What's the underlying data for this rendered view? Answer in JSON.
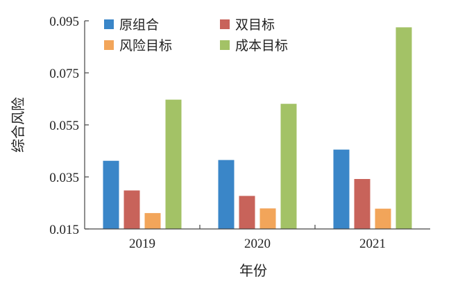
{
  "chart_data": {
    "type": "bar",
    "categories": [
      "2019",
      "2020",
      "2021"
    ],
    "series": [
      {
        "name": "原组合",
        "color": "#3a86c8",
        "values": [
          0.0412,
          0.0415,
          0.0455
        ]
      },
      {
        "name": "双目标",
        "color": "#c8635a",
        "values": [
          0.0298,
          0.0277,
          0.0342
        ]
      },
      {
        "name": "风险目标",
        "color": "#f2a55a",
        "values": [
          0.0211,
          0.0229,
          0.0228
        ]
      },
      {
        "name": "成本目标",
        "color": "#a3c266",
        "values": [
          0.0647,
          0.0631,
          0.0925
        ]
      }
    ],
    "title": "",
    "xlabel": "年份",
    "ylabel": "综合风险",
    "ylim": [
      0.015,
      0.095
    ],
    "yticks": [
      "0.015",
      "0.035",
      "0.055",
      "0.075",
      "0.095"
    ],
    "grid": false,
    "legend_position": "top-left, inside plot, two columns"
  }
}
